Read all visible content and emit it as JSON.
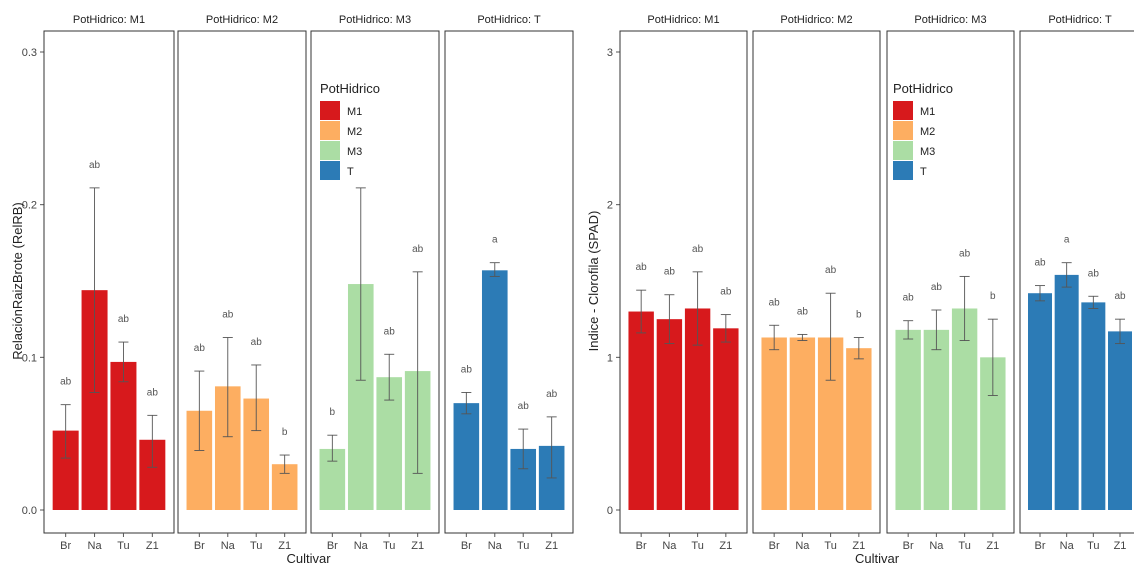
{
  "colors": {
    "M1": "#d7191c",
    "M2": "#fdae61",
    "M3": "#abdda4",
    "T": "#2c7bb6"
  },
  "chart_data": [
    {
      "type": "bar",
      "facet_var": "PotHidrico",
      "facets": [
        "PotHidrico: M1",
        "PotHidrico: M2",
        "PotHidrico: M3",
        "PotHidrico: T"
      ],
      "facet_keys": [
        "M1",
        "M2",
        "M3",
        "T"
      ],
      "categories": [
        "Br",
        "Na",
        "Tu",
        "Z1"
      ],
      "xlabel": "Cultivar",
      "ylabel": "RelaciónRaizBrote (RelRB)",
      "ylim": [
        0,
        0.3
      ],
      "yticks": [
        "0.0",
        "0.1",
        "0.2",
        "0.3"
      ],
      "ytick_values": [
        0,
        0.1,
        0.2,
        0.3
      ],
      "series": [
        {
          "name": "M1",
          "values": [
            0.052,
            0.144,
            0.097,
            0.046
          ],
          "err_low": [
            0.034,
            0.077,
            0.084,
            0.028
          ],
          "err_high": [
            0.069,
            0.211,
            0.11,
            0.062
          ],
          "letters": [
            "ab",
            "ab",
            "ab",
            "ab"
          ]
        },
        {
          "name": "M2",
          "values": [
            0.065,
            0.081,
            0.073,
            0.03
          ],
          "err_low": [
            0.039,
            0.048,
            0.052,
            0.024
          ],
          "err_high": [
            0.091,
            0.113,
            0.095,
            0.036
          ],
          "letters": [
            "ab",
            "ab",
            "ab",
            "b"
          ]
        },
        {
          "name": "M3",
          "values": [
            0.04,
            0.148,
            0.087,
            0.091
          ],
          "err_low": [
            0.032,
            0.085,
            0.072,
            0.024
          ],
          "err_high": [
            0.049,
            0.211,
            0.102,
            0.156
          ],
          "letters": [
            "b",
            "ab",
            "ab",
            "ab"
          ]
        },
        {
          "name": "T",
          "values": [
            0.07,
            0.157,
            0.04,
            0.042
          ],
          "err_low": [
            0.063,
            0.153,
            0.027,
            0.021
          ],
          "err_high": [
            0.077,
            0.162,
            0.053,
            0.061
          ],
          "letters": [
            "ab",
            "a",
            "ab",
            "ab"
          ]
        }
      ],
      "legend": {
        "title": "PotHidrico",
        "items": [
          "M1",
          "M2",
          "M3",
          "T"
        ],
        "placement": "inside-top (over M3 panel)"
      }
    },
    {
      "type": "bar",
      "facet_var": "PotHidrico",
      "facets": [
        "PotHidrico: M1",
        "PotHidrico: M2",
        "PotHidrico: M3",
        "PotHidrico: T"
      ],
      "facet_keys": [
        "M1",
        "M2",
        "M3",
        "T"
      ],
      "categories": [
        "Br",
        "Na",
        "Tu",
        "Z1"
      ],
      "xlabel": "Cultivar",
      "ylabel": "Indice - Clorofila (SPAD)",
      "ylim": [
        0,
        3
      ],
      "yticks": [
        "0",
        "1",
        "2",
        "3"
      ],
      "ytick_values": [
        0,
        1,
        2,
        3
      ],
      "series": [
        {
          "name": "M1",
          "values": [
            1.3,
            1.25,
            1.32,
            1.19
          ],
          "err_low": [
            1.16,
            1.09,
            1.08,
            1.1
          ],
          "err_high": [
            1.44,
            1.41,
            1.56,
            1.28
          ],
          "letters": [
            "ab",
            "ab",
            "ab",
            "ab"
          ]
        },
        {
          "name": "M2",
          "values": [
            1.13,
            1.13,
            1.13,
            1.06
          ],
          "err_low": [
            1.05,
            1.11,
            0.85,
            0.99
          ],
          "err_high": [
            1.21,
            1.15,
            1.42,
            1.13
          ],
          "letters": [
            "ab",
            "ab",
            "ab",
            "b"
          ]
        },
        {
          "name": "M3",
          "values": [
            1.18,
            1.18,
            1.32,
            1.0
          ],
          "err_low": [
            1.12,
            1.05,
            1.11,
            0.75
          ],
          "err_high": [
            1.24,
            1.31,
            1.53,
            1.25
          ],
          "letters": [
            "ab",
            "ab",
            "ab",
            "b"
          ]
        },
        {
          "name": "T",
          "values": [
            1.42,
            1.54,
            1.36,
            1.17
          ],
          "err_low": [
            1.37,
            1.46,
            1.32,
            1.09
          ],
          "err_high": [
            1.47,
            1.62,
            1.4,
            1.25
          ],
          "letters": [
            "ab",
            "a",
            "ab",
            "ab"
          ]
        }
      ],
      "legend": {
        "title": "PotHidrico",
        "items": [
          "M1",
          "M2",
          "M3",
          "T"
        ],
        "placement": "inside-top (over M3 panel)"
      }
    }
  ]
}
